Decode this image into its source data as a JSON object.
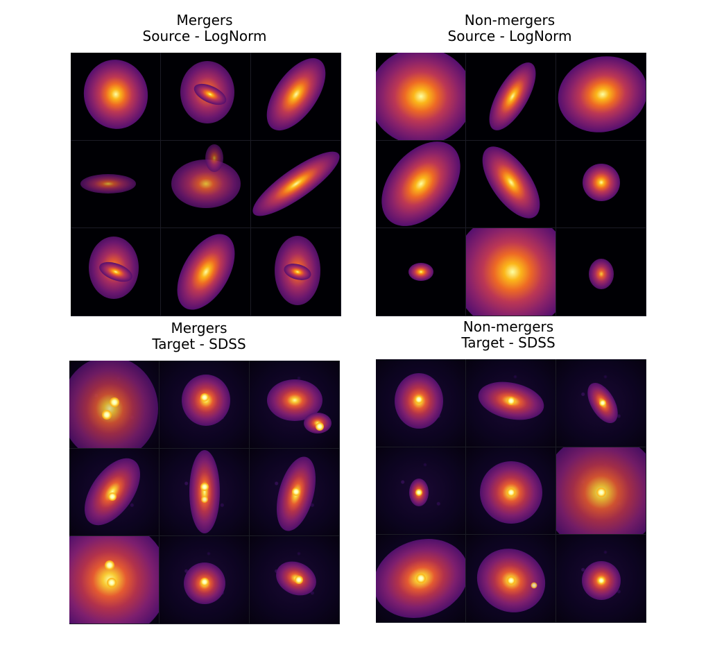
{
  "panels": [
    {
      "id": "mergers-source",
      "title_line1": "Mergers",
      "title_line2": "Source - LogNorm"
    },
    {
      "id": "nonmergers-source",
      "title_line1": "Non-mergers",
      "title_line2": "Source - LogNorm"
    },
    {
      "id": "mergers-target",
      "title_line1": "Mergers",
      "title_line2": "Target - SDSS"
    },
    {
      "id": "nonmergers-target",
      "title_line1": "Non-mergers",
      "title_line2": "Target - SDSS"
    }
  ],
  "colors": {
    "background": "#ffffff",
    "image_background": "#000004",
    "colormap": "inferno"
  }
}
